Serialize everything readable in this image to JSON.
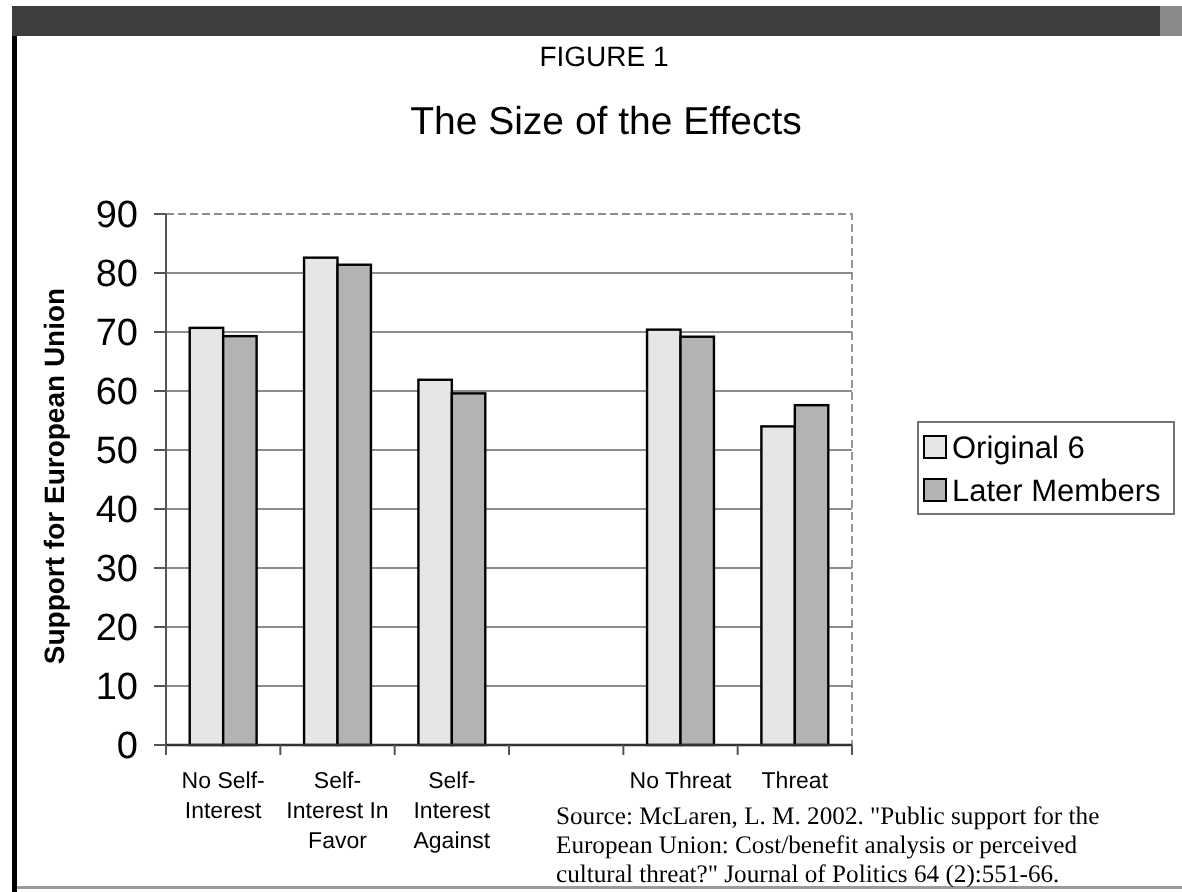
{
  "chart_data": {
    "type": "bar",
    "title": "FIGURE 1",
    "subtitle": "The Size of the Effects",
    "ylabel": "Support for European Union",
    "categories": [
      "No Self-\nInterest",
      "Self-\nInterest In\nFavor",
      "Self-\nInterest\nAgainst",
      null,
      "No Threat",
      "Threat"
    ],
    "series": [
      {
        "name": "Original 6",
        "color": "#e6e6e6",
        "values": [
          70.7,
          82.6,
          61.9,
          null,
          70.4,
          54.0
        ]
      },
      {
        "name": "Later Members",
        "color": "#b3b3b3",
        "values": [
          69.3,
          81.4,
          59.6,
          null,
          69.2,
          57.6
        ]
      }
    ],
    "ylim": [
      0,
      90
    ],
    "yticks": [
      0,
      10,
      20,
      30,
      40,
      50,
      60,
      70,
      80,
      90
    ],
    "grid": "y",
    "legend": "right",
    "annotations": [
      "Source: McLaren, L. M. 2002. \"Public support for the European Union: Cost/benefit analysis or perceived cultural threat?\" Journal of Politics 64 (2):551-66."
    ]
  }
}
